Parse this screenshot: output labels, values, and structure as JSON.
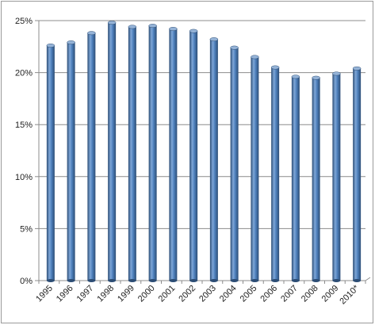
{
  "chart_data": {
    "type": "bar",
    "categories": [
      "1995",
      "1996",
      "1997",
      "1998",
      "1999",
      "2000",
      "2001",
      "2002",
      "2003",
      "2004",
      "2005",
      "2006",
      "2007",
      "2008",
      "2009",
      "2010*"
    ],
    "values": [
      22.6,
      22.9,
      23.8,
      24.8,
      24.4,
      24.5,
      24.2,
      24.0,
      23.2,
      22.4,
      21.5,
      20.5,
      19.6,
      19.5,
      19.9,
      20.4
    ],
    "title": "",
    "xlabel": "",
    "ylabel": "",
    "ylim": [
      0,
      25
    ],
    "y_ticks": [
      "0%",
      "5%",
      "10%",
      "15%",
      "20%",
      "25%"
    ],
    "y_tick_values": [
      0,
      5,
      10,
      15,
      20,
      25
    ],
    "grid": true,
    "legend": "none",
    "bar_style": "3d-cylinder",
    "colors": {
      "bar_main": "#4f81bd",
      "bar_dark": "#2c4d75",
      "bar_light": "#7fa7d8",
      "bar_top": "#95b3d7",
      "gridline": "#8c8c8c",
      "frame": "#9a9a9a"
    }
  }
}
